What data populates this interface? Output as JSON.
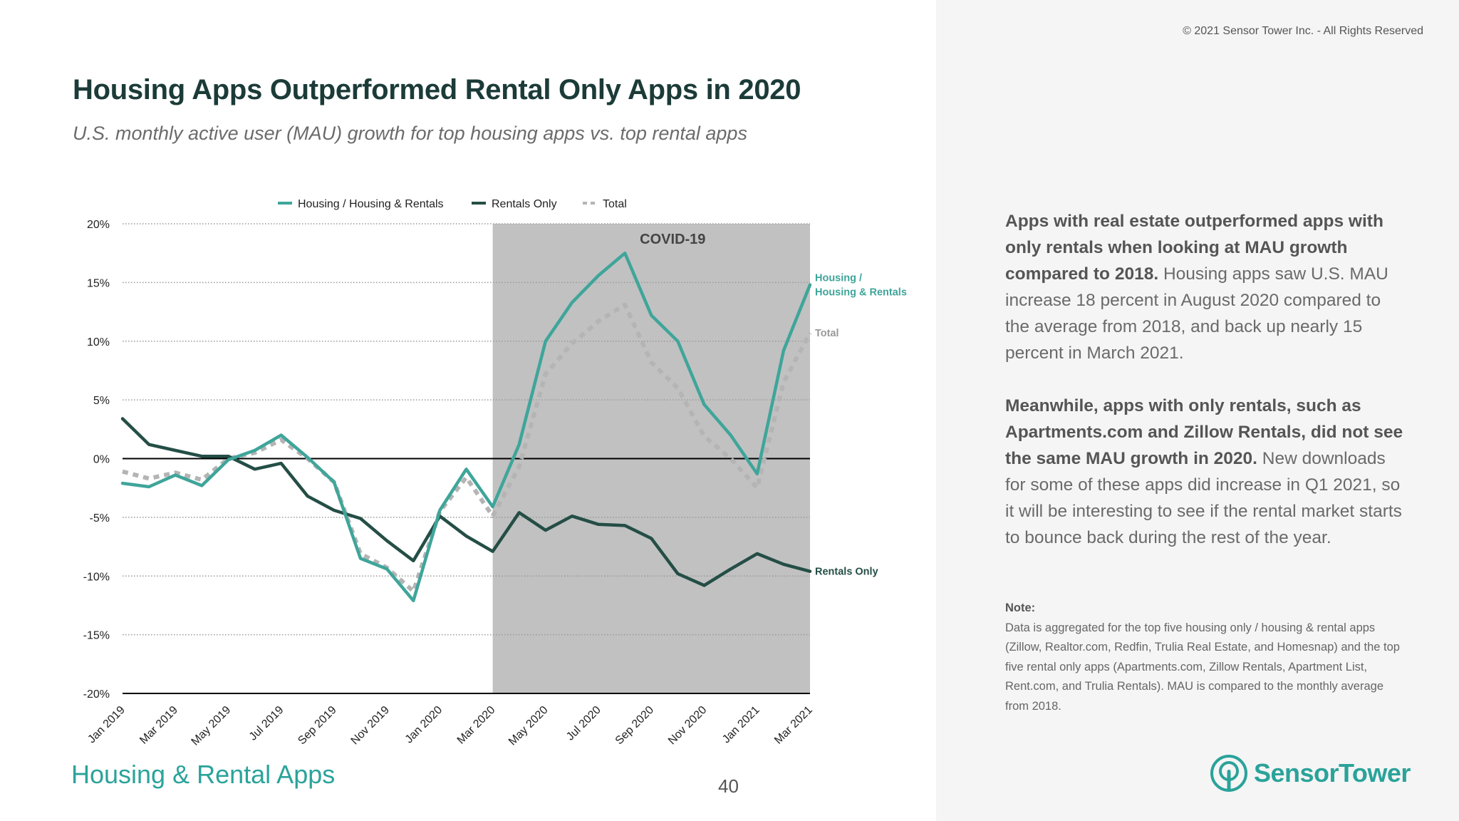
{
  "copyright": "© 2021 Sensor Tower Inc. - All Rights Reserved",
  "title": "Housing Apps Outperformed Rental Only Apps in 2020",
  "subtitle": "U.S. monthly active user (MAU) growth for top housing apps vs. top rental apps",
  "colors": {
    "housing": "#3fa59a",
    "rentals": "#244e46",
    "total": "#b4b4b4",
    "covid_shade": "#c1c1c1"
  },
  "chart_data": {
    "type": "line",
    "x": [
      "Jan 2019",
      "Feb 2019",
      "Mar 2019",
      "Apr 2019",
      "May 2019",
      "Jun 2019",
      "Jul 2019",
      "Aug 2019",
      "Sep 2019",
      "Oct 2019",
      "Nov 2019",
      "Dec 2019",
      "Jan 2020",
      "Feb 2020",
      "Mar 2020",
      "Apr 2020",
      "May 2020",
      "Jun 2020",
      "Jul 2020",
      "Aug 2020",
      "Sep 2020",
      "Oct 2020",
      "Nov 2020",
      "Dec 2020",
      "Jan 2021",
      "Feb 2021",
      "Mar 2021"
    ],
    "tick_labels": [
      "Jan 2019",
      "Mar 2019",
      "May 2019",
      "Jul 2019",
      "Sep 2019",
      "Nov 2019",
      "Jan 2020",
      "Mar 2020",
      "May 2020",
      "Jul 2020",
      "Sep 2020",
      "Nov 2020",
      "Jan 2021",
      "Mar 2021"
    ],
    "y_ticks": [
      "20%",
      "15%",
      "10%",
      "5%",
      "0%",
      "-5%",
      "-10%",
      "-15%",
      "-20%"
    ],
    "ylim": [
      -20,
      20
    ],
    "series": [
      {
        "name": "Housing / Housing & Rentals",
        "end_label": "Housing / Housing & Rentals",
        "end_label_lines": [
          "Housing /",
          "Housing & Rentals"
        ],
        "values": [
          -2.1,
          -2.4,
          -1.4,
          -2.3,
          -0.1,
          0.7,
          2.0,
          0.1,
          -2.0,
          -8.5,
          -9.4,
          -12.1,
          -4.4,
          -0.9,
          -4.1,
          1.2,
          10.0,
          13.3,
          15.6,
          17.5,
          12.2,
          10.0,
          4.6,
          2.0,
          -1.3,
          9.2,
          14.8
        ]
      },
      {
        "name": "Rentals Only",
        "end_label": "Rentals Only",
        "end_label_lines": [
          "Rentals Only"
        ],
        "values": [
          3.4,
          1.2,
          0.7,
          0.2,
          0.2,
          -0.9,
          -0.4,
          -3.2,
          -4.4,
          -5.1,
          -7.0,
          -8.7,
          -4.9,
          -6.6,
          -7.9,
          -4.6,
          -6.1,
          -4.9,
          -5.6,
          -5.7,
          -6.8,
          -9.8,
          -10.8,
          -9.4,
          -8.1,
          -9.0,
          -9.6
        ]
      },
      {
        "name": "Total",
        "end_label": "Total",
        "end_label_lines": [
          "Total"
        ],
        "values": [
          -1.1,
          -1.7,
          -1.2,
          -1.8,
          0.0,
          0.5,
          1.6,
          0.0,
          -2.0,
          -8.1,
          -9.3,
          -11.3,
          -4.5,
          -1.6,
          -4.9,
          -0.7,
          7.2,
          9.8,
          11.7,
          13.1,
          8.2,
          6.0,
          1.9,
          0.0,
          -2.5,
          6.5,
          10.7
        ]
      }
    ],
    "annotation": {
      "label": "COVID-19",
      "from": "Mar 2020",
      "to": "Mar 2021"
    },
    "legend": [
      "Housing / Housing & Rentals",
      "Rentals Only",
      "Total"
    ],
    "legend_position": "top-center",
    "grid": "dotted horizontal"
  },
  "commentary": {
    "p1_bold": "Apps with real estate outperformed apps with only rentals when looking at MAU growth compared to 2018.",
    "p1_text": " Housing apps saw U.S. MAU increase 18 percent in August 2020 compared to the average from 2018, and back up nearly 15 percent in March 2021.",
    "p2_bold": "Meanwhile, apps with only rentals, such as Apartments.com and Zillow Rentals, did not see the same MAU growth in 2020.",
    "p2_text": " New downloads for some of these apps did increase in Q1 2021, so it will be interesting to see if the rental market starts to bounce back during the rest of the year."
  },
  "note": {
    "label": "Note:",
    "text": "Data is aggregated for the top five housing only / housing & rental apps (Zillow, Realtor.com, Redfin, Trulia Real Estate, and Homesnap) and the top five rental only apps (Apartments.com, Zillow Rentals, Apartment List, Rent.com, and Trulia Rentals). MAU is compared to the monthly average from 2018."
  },
  "footer": {
    "section": "Housing & Rental Apps",
    "page_number": "40"
  },
  "logo": {
    "text": "SensorTower",
    "icon": "sensor-tower-logo-icon"
  }
}
